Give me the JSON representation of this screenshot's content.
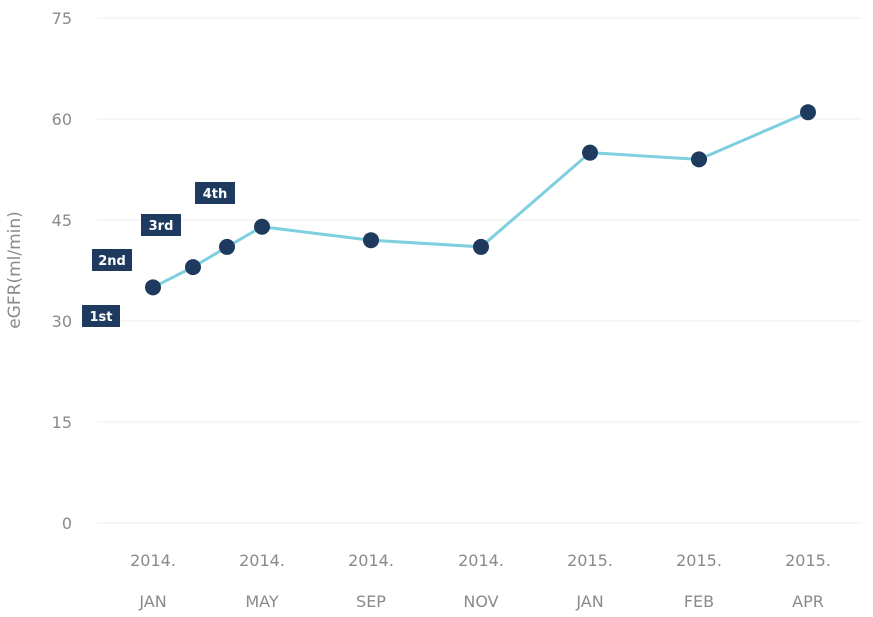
{
  "chart_data": {
    "type": "line",
    "ylabel": "eGFR(ml/min)",
    "xlabel": "",
    "title": "",
    "ylim": [
      0,
      75
    ],
    "yticks": [
      "75",
      "60",
      "45",
      "30",
      "15",
      "0"
    ],
    "x_tick_labels": [
      [
        "2014.",
        "JAN"
      ],
      [
        "2014.",
        "MAY"
      ],
      [
        "2014.",
        "SEP"
      ],
      [
        "2014.",
        "NOV"
      ],
      [
        "2015.",
        "JAN"
      ],
      [
        "2015.",
        "FEB"
      ],
      [
        "2015.",
        "APR"
      ]
    ],
    "grid": true,
    "legend": "none",
    "line_color": "#7ecfe0",
    "marker_color": "#1f3a5f",
    "tag_color": "#1f3a5f",
    "series": [
      {
        "points": [
          {
            "x": "2014. JAN",
            "y": 35
          },
          {
            "x": "",
            "y": 38
          },
          {
            "x": "",
            "y": 41
          },
          {
            "x": "2014. MAY",
            "y": 44
          },
          {
            "x": "2014. SEP",
            "y": 42
          },
          {
            "x": "2014. NOV",
            "y": 41
          },
          {
            "x": "2015. JAN",
            "y": 55
          },
          {
            "x": "2015. FEB",
            "y": 54
          },
          {
            "x": "2015. APR",
            "y": 61
          }
        ]
      }
    ],
    "annotations": [
      {
        "text": "1st",
        "point_index": 0
      },
      {
        "text": "2nd",
        "point_index": 1
      },
      {
        "text": "3rd",
        "point_index": 2
      },
      {
        "text": "4th",
        "point_index": 3
      }
    ]
  }
}
